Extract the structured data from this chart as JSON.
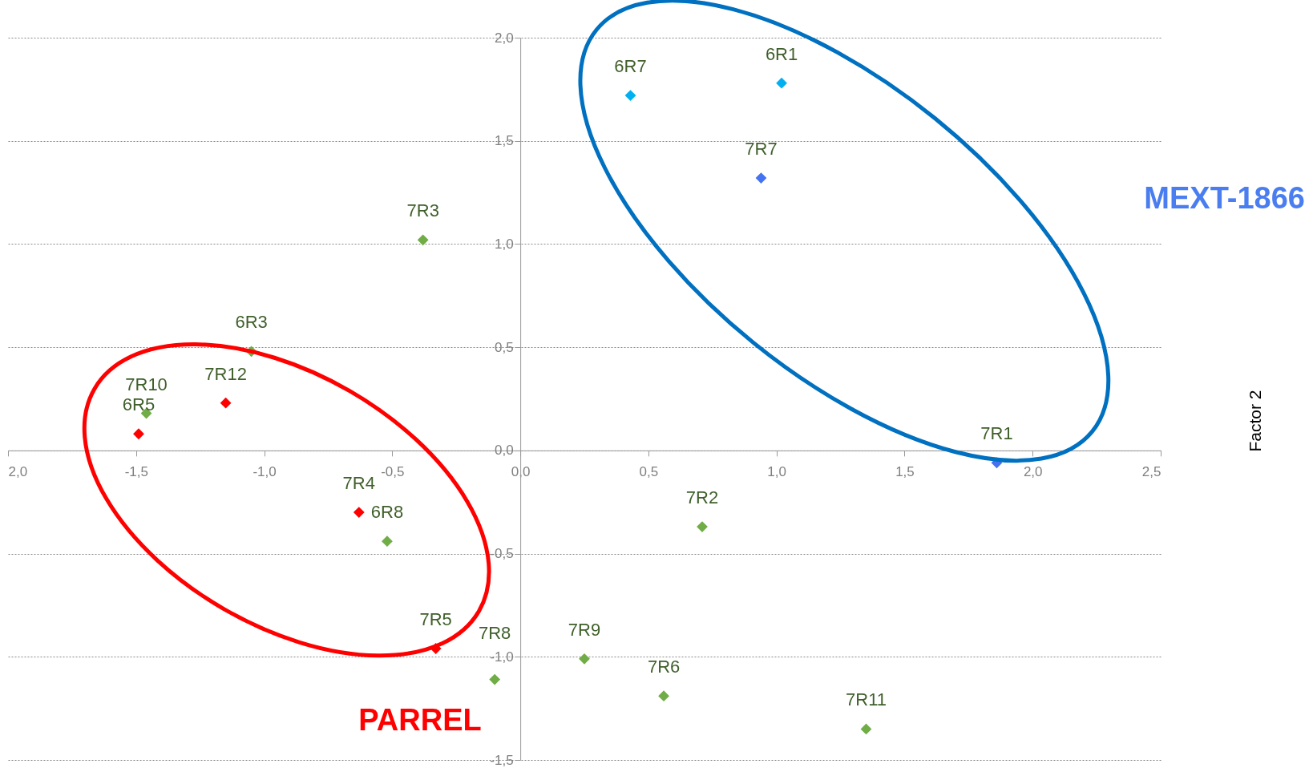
{
  "chart_data": {
    "type": "scatter",
    "ylabel": "Factor 2",
    "annotations": [
      "MEXT-1866",
      "PARREL"
    ],
    "xlim": [
      -2.0,
      2.5
    ],
    "ylim": [
      -1.5,
      2.0
    ],
    "xticks": [
      {
        "value": -2.0,
        "label": "2,0"
      },
      {
        "value": -1.5,
        "label": "-1,5"
      },
      {
        "value": -1.0,
        "label": "-1,0"
      },
      {
        "value": -0.5,
        "label": "-0,5"
      },
      {
        "value": 0,
        "label": "0,0"
      },
      {
        "value": 0.5,
        "label": "0,5"
      },
      {
        "value": 1.0,
        "label": "1,0"
      },
      {
        "value": 1.5,
        "label": "1,5"
      },
      {
        "value": 2.0,
        "label": "2,0"
      },
      {
        "value": 2.5,
        "label": "2,5"
      }
    ],
    "yticks": [
      {
        "value": -1.5,
        "label": "-1,5"
      },
      {
        "value": -1.0,
        "label": "-1,0"
      },
      {
        "value": -0.5,
        "label": "-0,5"
      },
      {
        "value": 0,
        "label": "0,0"
      },
      {
        "value": 0.5,
        "label": "0,5"
      },
      {
        "value": 1.0,
        "label": "1,0"
      },
      {
        "value": 1.5,
        "label": "1,5"
      },
      {
        "value": 2.0,
        "label": "2,0"
      }
    ],
    "grid": "y",
    "marker": "diamond",
    "series": [
      {
        "x": [
          0.43,
          1.02,
          0.94,
          1.86,
          -0.38,
          -1.05,
          -1.46,
          -1.15,
          -1.49,
          -0.63,
          -0.52,
          -0.33,
          -0.1,
          0.25,
          0.56,
          1.35,
          0.71
        ],
        "values": [
          1.72,
          1.78,
          1.32,
          -0.06,
          1.02,
          0.48,
          0.18,
          0.23,
          0.08,
          -0.3,
          -0.44,
          -0.96,
          -1.11,
          -1.01,
          -1.19,
          -1.35,
          -0.37
        ],
        "colors": [
          "#00b0f0",
          "#00b0f0",
          "#4472f0",
          "#4472f0",
          "#70ad47",
          "#70ad47",
          "#70ad47",
          "#ff0000",
          "#ff0000",
          "#ff0000",
          "#70ad47",
          "#ff0000",
          "#70ad47",
          "#70ad47",
          "#70ad47",
          "#70ad47",
          "#70ad47"
        ],
        "value_labels": [
          "6R7",
          "6R1",
          "7R7",
          "7R1",
          "7R3",
          "6R3",
          "7R10",
          "7R12",
          "6R5",
          "7R4",
          "6R8",
          "7R5",
          "7R8",
          "7R9",
          "7R6",
          "7R11",
          "7R2"
        ]
      }
    ]
  }
}
